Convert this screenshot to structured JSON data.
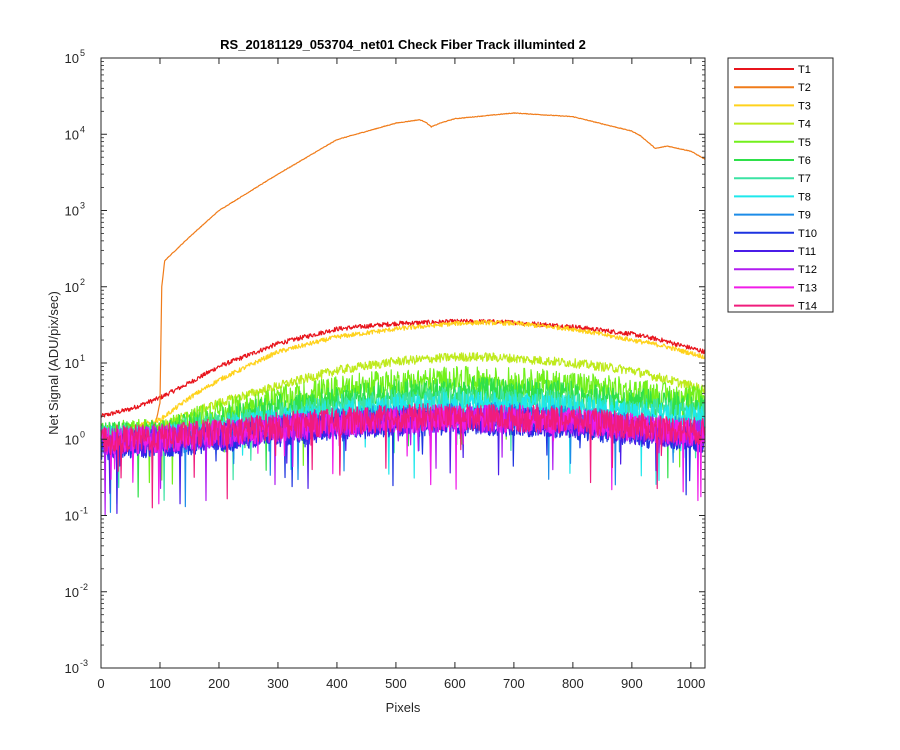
{
  "chart_data": {
    "type": "line",
    "title": "RS_20181129_053704_net01   Check Fiber     Track illuminted 2",
    "xlabel": "Pixels",
    "ylabel": "Net Signal (ADU/pix/sec)",
    "xlim": [
      0,
      1024
    ],
    "ylim": [
      0.001,
      100000
    ],
    "yscale": "log",
    "xticks": [
      "0",
      "100",
      "200",
      "300",
      "400",
      "500",
      "600",
      "700",
      "800",
      "900",
      "1000"
    ],
    "yticks": [
      {
        "base": "10",
        "exp": "-3"
      },
      {
        "base": "10",
        "exp": "-2"
      },
      {
        "base": "10",
        "exp": "-1"
      },
      {
        "base": "10",
        "exp": "0"
      },
      {
        "base": "10",
        "exp": "1"
      },
      {
        "base": "10",
        "exp": "2"
      },
      {
        "base": "10",
        "exp": "3"
      },
      {
        "base": "10",
        "exp": "4"
      },
      {
        "base": "10",
        "exp": "5"
      }
    ],
    "grid": false,
    "legend_position": "outside-top-right",
    "series": [
      {
        "name": "T1",
        "color": "#e8141c",
        "x": [
          0,
          50,
          100,
          150,
          200,
          300,
          400,
          500,
          600,
          650,
          700,
          800,
          900,
          950,
          1024
        ],
        "y": [
          2.0,
          2.5,
          3.5,
          5.5,
          9,
          18,
          28,
          33,
          35,
          35,
          34,
          30,
          24,
          20,
          14
        ]
      },
      {
        "name": "T2",
        "color": "#f07c1a",
        "x": [
          0,
          90,
          100,
          103,
          108,
          150,
          200,
          300,
          400,
          500,
          540,
          550,
          560,
          575,
          600,
          700,
          800,
          900,
          915,
          940,
          960,
          1000,
          1024
        ],
        "y": [
          1.2,
          1.3,
          3,
          100,
          220,
          450,
          1000,
          3000,
          8500,
          14000,
          15500,
          14500,
          12500,
          14000,
          16000,
          19000,
          17000,
          11000,
          9500,
          6500,
          7000,
          6000,
          4700
        ]
      },
      {
        "name": "T3",
        "color": "#ffd21c",
        "x": [
          0,
          50,
          100,
          150,
          200,
          300,
          400,
          500,
          600,
          650,
          700,
          800,
          900,
          950,
          1024
        ],
        "y": [
          1.3,
          1.4,
          1.8,
          3.5,
          6,
          14,
          22,
          28,
          33,
          34,
          33,
          28,
          20,
          17,
          12
        ]
      },
      {
        "name": "T4",
        "color": "#bfea1c",
        "x": [
          0,
          100,
          200,
          300,
          400,
          500,
          600,
          650,
          700,
          800,
          900,
          1024
        ],
        "y": [
          1.2,
          1.5,
          3,
          5,
          8,
          10.5,
          12,
          12,
          11.5,
          10,
          8,
          4.5
        ]
      },
      {
        "name": "T5",
        "color": "#72f01c",
        "x": [
          0,
          100,
          200,
          300,
          400,
          500,
          600,
          700,
          800,
          900,
          1024
        ],
        "y": [
          1.1,
          1.3,
          2.2,
          3.3,
          4.5,
          5.5,
          6,
          5.8,
          5.2,
          4.2,
          3.2
        ]
      },
      {
        "name": "T6",
        "color": "#2ee04a",
        "x": [
          0,
          100,
          200,
          300,
          400,
          500,
          600,
          700,
          800,
          900,
          1024
        ],
        "y": [
          1.1,
          1.2,
          1.8,
          2.6,
          3.3,
          4,
          4.3,
          4.2,
          3.8,
          3.2,
          2.5
        ]
      },
      {
        "name": "T7",
        "color": "#3be3a4",
        "x": [
          0,
          100,
          200,
          300,
          400,
          500,
          600,
          700,
          800,
          900,
          1024
        ],
        "y": [
          1.0,
          1.1,
          1.5,
          2.0,
          2.6,
          3.0,
          3.2,
          3.1,
          2.8,
          2.4,
          2.0
        ]
      },
      {
        "name": "T8",
        "color": "#1ee8ec",
        "x": [
          0,
          100,
          200,
          300,
          400,
          500,
          600,
          700,
          800,
          900,
          1024
        ],
        "y": [
          1.0,
          1.0,
          1.3,
          1.7,
          2.2,
          2.6,
          2.8,
          2.7,
          2.5,
          2.1,
          1.8
        ]
      },
      {
        "name": "T9",
        "color": "#1c8ce8",
        "x": [
          0,
          100,
          200,
          300,
          400,
          500,
          600,
          700,
          800,
          900,
          1024
        ],
        "y": [
          0.9,
          0.95,
          1.1,
          1.4,
          1.7,
          1.9,
          2.0,
          2.0,
          1.8,
          1.5,
          1.2
        ]
      },
      {
        "name": "T10",
        "color": "#1c32e0",
        "x": [
          0,
          100,
          200,
          300,
          400,
          500,
          600,
          700,
          800,
          900,
          1024
        ],
        "y": [
          0.8,
          0.85,
          1.0,
          1.2,
          1.4,
          1.6,
          1.7,
          1.6,
          1.5,
          1.2,
          1.0
        ]
      },
      {
        "name": "T11",
        "color": "#4a1ce8",
        "x": [
          0,
          100,
          200,
          300,
          400,
          500,
          600,
          700,
          800,
          900,
          1024
        ],
        "y": [
          0.85,
          0.9,
          1.05,
          1.3,
          1.5,
          1.7,
          1.8,
          1.7,
          1.6,
          1.3,
          1.05
        ]
      },
      {
        "name": "T12",
        "color": "#b01cf0",
        "x": [
          0,
          100,
          200,
          300,
          400,
          500,
          600,
          700,
          800,
          900,
          1024
        ],
        "y": [
          0.9,
          1.0,
          1.15,
          1.4,
          1.6,
          1.8,
          1.9,
          1.8,
          1.7,
          1.4,
          1.15
        ]
      },
      {
        "name": "T13",
        "color": "#f01ce8",
        "x": [
          0,
          100,
          200,
          300,
          400,
          500,
          600,
          700,
          800,
          900,
          1024
        ],
        "y": [
          0.95,
          1.0,
          1.2,
          1.4,
          1.6,
          1.8,
          1.9,
          1.85,
          1.7,
          1.45,
          1.2
        ]
      },
      {
        "name": "T14",
        "color": "#f01c7c",
        "x": [
          0,
          100,
          200,
          300,
          400,
          500,
          600,
          700,
          800,
          900,
          1024
        ],
        "y": [
          1.0,
          1.05,
          1.25,
          1.5,
          1.7,
          1.9,
          2.0,
          1.9,
          1.8,
          1.5,
          1.25
        ]
      }
    ]
  }
}
